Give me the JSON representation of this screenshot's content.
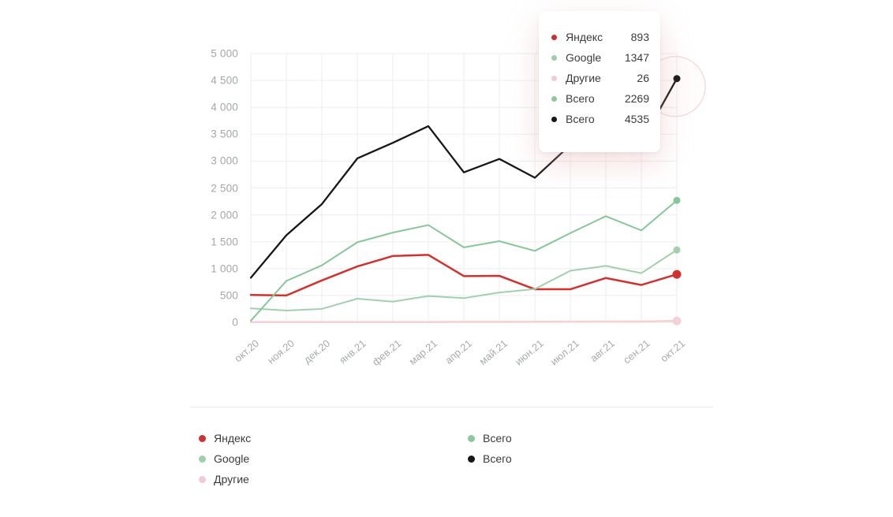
{
  "chart_data": {
    "type": "line",
    "title": "",
    "xlabel": "",
    "ylabel": "",
    "ylim": [
      0,
      5000
    ],
    "ytick_step": 500,
    "grid": true,
    "legend_position": "bottom",
    "categories": [
      "окт.20",
      "ноя.20",
      "дек.20",
      "янв.21",
      "фев.21",
      "мар.21",
      "апр.21",
      "май.21",
      "июн.21",
      "июл.21",
      "авг.21",
      "сен.21",
      "окт.21"
    ],
    "y_tick_labels": [
      "5 000",
      "4 500",
      "4 000",
      "3 500",
      "3 000",
      "2 500",
      "2 000",
      "1 500",
      "1 000",
      "500",
      "0"
    ],
    "series": [
      {
        "id": "yandex",
        "name": "Яндекс",
        "color": "#d2312d",
        "width": 2.5,
        "dot_radius": 5.5,
        "values": [
          510,
          500,
          780,
          1040,
          1235,
          1255,
          860,
          865,
          615,
          615,
          825,
          695,
          893
        ]
      },
      {
        "id": "google",
        "name": "Google",
        "color": "#a2d0ac",
        "width": 2,
        "dot_radius": 4.5,
        "values": [
          260,
          220,
          250,
          440,
          385,
          490,
          450,
          555,
          620,
          960,
          1050,
          915,
          1347
        ]
      },
      {
        "id": "others",
        "name": "Другие",
        "color": "#f3d2d7",
        "width": 2.6,
        "dot_radius": 5.5,
        "values": [
          5,
          5,
          5,
          5,
          5,
          5,
          8,
          8,
          10,
          12,
          14,
          16,
          26
        ]
      },
      {
        "id": "total-green",
        "name": "Всего",
        "color": "#86c699",
        "width": 2,
        "dot_radius": 4.5,
        "values": [
          30,
          770,
          1060,
          1490,
          1670,
          1810,
          1395,
          1510,
          1330,
          1660,
          1975,
          1710,
          2269
        ]
      },
      {
        "id": "total-black",
        "name": "Всего",
        "color": "#171717",
        "width": 2.3,
        "dot_radius": 4.5,
        "values": [
          830,
          1620,
          2200,
          3050,
          3340,
          3650,
          2790,
          3040,
          2690,
          3300,
          3900,
          3350,
          4535
        ]
      }
    ],
    "highlight": {
      "series_id": "total-black",
      "category": "окт.21",
      "ring_color": "#f2dada"
    }
  },
  "tooltip": {
    "rows": [
      {
        "label": "Яндекс",
        "value": "893",
        "color": "#c9302e"
      },
      {
        "label": "Google",
        "value": "1347",
        "color": "#9ecfaa"
      },
      {
        "label": "Другие",
        "value": "26",
        "color": "#eecdd2"
      },
      {
        "label": "Всего",
        "value": "2269",
        "color": "#8cc89c"
      },
      {
        "label": "Всего",
        "value": "4535",
        "color": "#171717"
      }
    ]
  },
  "legend": {
    "columns": [
      [
        {
          "label": "Яндекс",
          "color": "#d2312d"
        },
        {
          "label": "Google",
          "color": "#9ecfaa"
        },
        {
          "label": "Другие",
          "color": "#f0ccd2"
        }
      ],
      [
        {
          "label": "Всего",
          "color": "#8cc89c"
        },
        {
          "label": "Всего",
          "color": "#171717"
        }
      ]
    ]
  },
  "colors": {
    "grid": "#ededed",
    "axis_text": "#a5a9ab",
    "legend_text": "#3a3a3a",
    "background": "#ffffff"
  }
}
